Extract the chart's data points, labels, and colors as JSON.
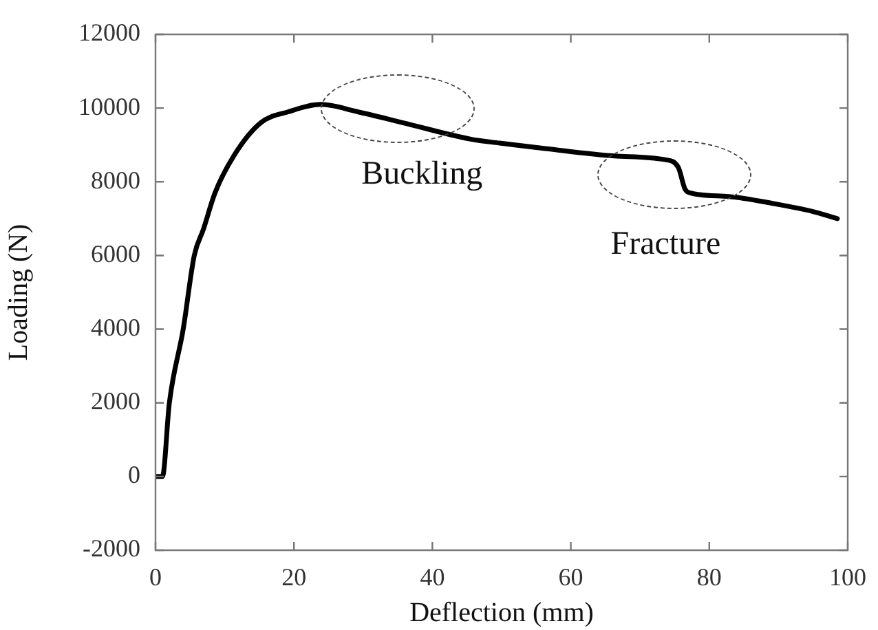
{
  "chart_data": {
    "type": "line",
    "xlabel": "Deflection (mm)",
    "ylabel": "Loading (N)",
    "x": [
      0,
      1,
      2,
      4,
      5.6,
      6.9,
      8.6,
      11.3,
      15.2,
      19.2,
      23.9,
      29.2,
      35.8,
      45.7,
      49.7,
      56.3,
      66.3,
      73.6,
      75.5,
      76.5,
      77.2,
      82.8,
      89.5,
      94.8,
      98.5
    ],
    "series": [
      {
        "color": "#000000",
        "values": [
          0,
          0,
          2000,
          4000,
          6000,
          6700,
          7700,
          8700,
          9600,
          9900,
          10100,
          9900,
          9600,
          9150,
          9050,
          8900,
          8700,
          8600,
          8400,
          7800,
          7700,
          7600,
          7400,
          7200,
          7000
        ]
      }
    ],
    "xlim": [
      0,
      100
    ],
    "xticks": [
      0,
      20,
      40,
      60,
      80,
      100
    ],
    "ylim": [
      -2000,
      12000
    ],
    "yticks": [
      -2000,
      0,
      2000,
      4000,
      6000,
      8000,
      10000,
      12000
    ],
    "grid": false,
    "legend": false,
    "marker": "none",
    "line_style": "solid",
    "annotations": [
      "Buckling",
      "Fracture"
    ]
  }
}
